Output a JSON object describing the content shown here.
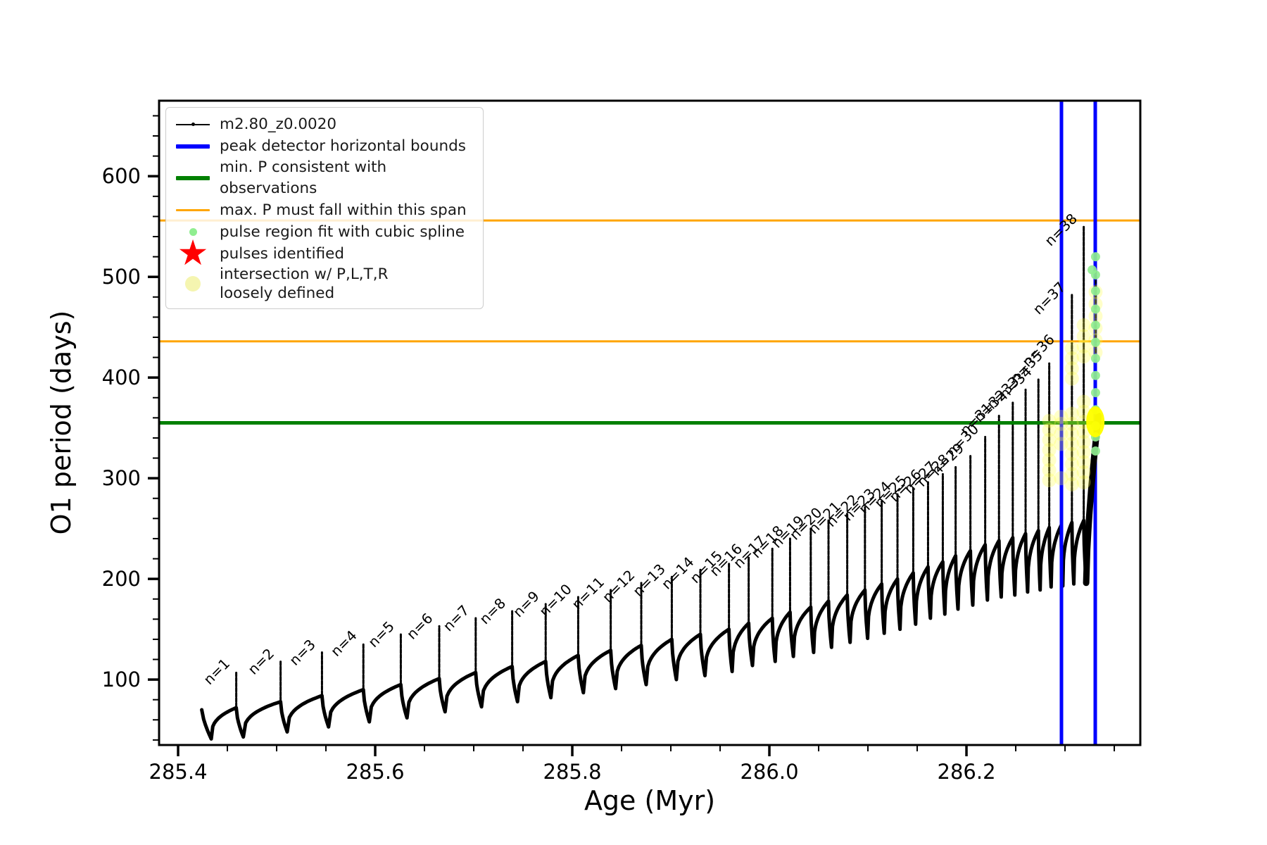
{
  "legend": {
    "items": [
      {
        "label": "m2.80_z0.0020",
        "marker": "line-dot",
        "color": "#000000"
      },
      {
        "label": "peak detector horizontal bounds",
        "marker": "thick-line",
        "color": "#0000ff"
      },
      {
        "label": "min. P consistent with observations",
        "marker": "thick-line",
        "color": "#008000"
      },
      {
        "label": "max. P must fall within this span",
        "marker": "line",
        "color": "#ffa500"
      },
      {
        "label": "pulse region fit with cubic spline",
        "marker": "dot-small",
        "color": "#90ee90"
      },
      {
        "label": "pulses identified",
        "marker": "star",
        "color": "#ff0000"
      },
      {
        "label": "intersection w/ P,L,T,R",
        "label2": "loosely defined",
        "marker": "dot-large",
        "color": "#f5f5b0"
      }
    ]
  },
  "chart_data": {
    "type": "line",
    "title": "",
    "xlabel": "Age (Myr)",
    "ylabel": "O1 period (days)",
    "series_label": "m2.80_z0.0020",
    "xlim": [
      285.3807,
      286.3764
    ],
    "ylim": [
      35,
      675
    ],
    "x_major_ticks": [
      {
        "v": 285.4,
        "label": "285.4"
      },
      {
        "v": 285.6,
        "label": "285.6"
      },
      {
        "v": 285.8,
        "label": "285.8"
      },
      {
        "v": 286.0,
        "label": "286.0"
      },
      {
        "v": 286.2,
        "label": "286.2"
      }
    ],
    "x_minor_step": 0.05,
    "y_major_ticks": [
      {
        "v": 100,
        "label": "100"
      },
      {
        "v": 200,
        "label": "200"
      },
      {
        "v": 300,
        "label": "300"
      },
      {
        "v": 400,
        "label": "400"
      },
      {
        "v": 500,
        "label": "500"
      },
      {
        "v": 600,
        "label": "600"
      }
    ],
    "y_minor_step": 20,
    "colors": {
      "series": "#000000",
      "peak_detector_bounds": "#0000ff",
      "min_p_line": "#008000",
      "max_p_lines": "#ffa500",
      "spline_dots": "#90ee90",
      "pulse_star": "#ff0000",
      "intersection_dots": "#ffff4d",
      "intersection_blob": "#ffff00"
    },
    "hlines": [
      {
        "y": 556,
        "color": "#ffa500",
        "w": 3,
        "meaning": "max. P must fall within this span (upper)"
      },
      {
        "y": 436,
        "color": "#ffa500",
        "w": 3,
        "meaning": "max. P must fall within this span (lower)"
      },
      {
        "y": 355,
        "color": "#008000",
        "w": 5,
        "meaning": "min. P consistent with observations"
      }
    ],
    "vlines": [
      {
        "x": 286.2964,
        "color": "#0000ff",
        "w": 5,
        "meaning": "peak detector bound (left)"
      },
      {
        "x": 286.3307,
        "color": "#0000ff",
        "w": 5,
        "meaning": "peak detector bound (right)"
      }
    ],
    "pulse_label_prefix": "n=",
    "start": {
      "age": 285.424,
      "v": 70,
      "dip_age": 285.4336,
      "dip": 41
    },
    "tail": {
      "dip_age": 286.3215,
      "dip": 196,
      "end_age": 286.334,
      "end_v": 362
    },
    "pulses": [
      {
        "n": 1,
        "age": 285.459,
        "peak": 108,
        "base": 72,
        "dip": 43
      },
      {
        "n": 2,
        "age": 285.504,
        "peak": 118,
        "base": 78,
        "dip": 48
      },
      {
        "n": 3,
        "age": 285.546,
        "peak": 127,
        "base": 84,
        "dip": 53
      },
      {
        "n": 4,
        "age": 285.588,
        "peak": 136,
        "base": 90,
        "dip": 58
      },
      {
        "n": 5,
        "age": 285.626,
        "peak": 145,
        "base": 95,
        "dip": 62
      },
      {
        "n": 6,
        "age": 285.665,
        "peak": 153,
        "base": 101,
        "dip": 68
      },
      {
        "n": 7,
        "age": 285.702,
        "peak": 161,
        "base": 107,
        "dip": 73
      },
      {
        "n": 8,
        "age": 285.739,
        "peak": 168,
        "base": 113,
        "dip": 78
      },
      {
        "n": 9,
        "age": 285.773,
        "peak": 175,
        "base": 118,
        "dip": 82
      },
      {
        "n": 10,
        "age": 285.806,
        "peak": 182,
        "base": 124,
        "dip": 87
      },
      {
        "n": 11,
        "age": 285.839,
        "peak": 189,
        "base": 129,
        "dip": 91
      },
      {
        "n": 12,
        "age": 285.87,
        "peak": 196,
        "base": 134,
        "dip": 95
      },
      {
        "n": 13,
        "age": 285.901,
        "peak": 202,
        "base": 140,
        "dip": 100
      },
      {
        "n": 14,
        "age": 285.93,
        "peak": 209,
        "base": 145,
        "dip": 104
      },
      {
        "n": 15,
        "age": 285.959,
        "peak": 215,
        "base": 150,
        "dip": 108
      },
      {
        "n": 16,
        "age": 285.979,
        "peak": 222,
        "base": 156,
        "dip": 114
      },
      {
        "n": 17,
        "age": 286.003,
        "peak": 230,
        "base": 161,
        "dip": 118
      },
      {
        "n": 18,
        "age": 286.021,
        "peak": 240,
        "base": 167,
        "dip": 123
      },
      {
        "n": 19,
        "age": 286.042,
        "peak": 250,
        "base": 172,
        "dip": 127
      },
      {
        "n": 20,
        "age": 286.06,
        "peak": 258,
        "base": 178,
        "dip": 132
      },
      {
        "n": 21,
        "age": 286.079,
        "peak": 264,
        "base": 184,
        "dip": 137
      },
      {
        "n": 22,
        "age": 286.097,
        "peak": 271,
        "base": 189,
        "dip": 141
      },
      {
        "n": 23,
        "age": 286.114,
        "peak": 277,
        "base": 195,
        "dip": 146
      },
      {
        "n": 24,
        "age": 286.13,
        "peak": 284,
        "base": 200,
        "dip": 150
      },
      {
        "n": 25,
        "age": 286.146,
        "peak": 290,
        "base": 206,
        "dip": 155
      },
      {
        "n": 26,
        "age": 286.161,
        "peak": 296,
        "base": 212,
        "dip": 161
      },
      {
        "n": 27,
        "age": 286.176,
        "peak": 304,
        "base": 217,
        "dip": 165
      },
      {
        "n": 28,
        "age": 286.189,
        "peak": 311,
        "base": 223,
        "dip": 170
      },
      {
        "n": 29,
        "age": 286.204,
        "peak": 322,
        "base": 228,
        "dip": 174
      },
      {
        "n": 30,
        "age": 286.219,
        "peak": 341,
        "base": 234,
        "dip": 179
      },
      {
        "n": 31,
        "age": 286.233,
        "peak": 362,
        "base": 238,
        "dip": 182
      },
      {
        "n": 32,
        "age": 286.247,
        "peak": 375,
        "base": 241,
        "dip": 184
      },
      {
        "n": 33,
        "age": 286.26,
        "peak": 388,
        "base": 245,
        "dip": 187
      },
      {
        "n": 34,
        "age": 286.273,
        "peak": 398,
        "base": 248,
        "dip": 189
      },
      {
        "n": 35,
        "age": 286.284,
        "peak": 414,
        "base": 251,
        "dip": 192
      },
      {
        "n": 36,
        "age": 286.296,
        "peak": 430,
        "base": 253,
        "dip": 193
      },
      {
        "n": 37,
        "age": 286.307,
        "peak": 482,
        "base": 256,
        "dip": 195
      },
      {
        "n": 38,
        "age": 286.319,
        "peak": 550,
        "base": 258,
        "dip": 196
      }
    ],
    "extra_spike": {
      "x": 286.3312,
      "v1": 425,
      "v2": 507
    },
    "spline_dots": [
      [
        286.3275,
        507
      ],
      [
        286.331,
        520
      ],
      [
        286.331,
        502
      ],
      [
        286.331,
        486
      ],
      [
        286.331,
        468
      ],
      [
        286.331,
        452
      ],
      [
        286.331,
        435
      ],
      [
        286.331,
        419
      ],
      [
        286.331,
        402
      ],
      [
        286.331,
        385
      ],
      [
        286.331,
        368
      ],
      [
        286.331,
        352
      ],
      [
        286.331,
        341
      ],
      [
        286.331,
        327
      ]
    ],
    "intersection_dots": [
      [
        286.284,
        298
      ],
      [
        286.284,
        308
      ],
      [
        286.284,
        318
      ],
      [
        286.284,
        328
      ],
      [
        286.284,
        338
      ],
      [
        286.284,
        348
      ],
      [
        286.284,
        357
      ],
      [
        286.296,
        300
      ],
      [
        286.296,
        334
      ],
      [
        286.296,
        344
      ],
      [
        286.296,
        354
      ],
      [
        286.296,
        361
      ],
      [
        286.307,
        294
      ],
      [
        286.307,
        304
      ],
      [
        286.307,
        314
      ],
      [
        286.307,
        324
      ],
      [
        286.307,
        334
      ],
      [
        286.307,
        344
      ],
      [
        286.307,
        354
      ],
      [
        286.307,
        364
      ],
      [
        286.307,
        399
      ],
      [
        286.307,
        409
      ],
      [
        286.307,
        419
      ],
      [
        286.307,
        429
      ],
      [
        286.319,
        296
      ],
      [
        286.319,
        306
      ],
      [
        286.319,
        316
      ],
      [
        286.319,
        326
      ],
      [
        286.319,
        336
      ],
      [
        286.319,
        346
      ],
      [
        286.319,
        356
      ],
      [
        286.319,
        366
      ],
      [
        286.319,
        376
      ],
      [
        286.319,
        421
      ],
      [
        286.319,
        431
      ],
      [
        286.319,
        441
      ],
      [
        286.319,
        452
      ],
      [
        286.331,
        425
      ],
      [
        286.331,
        437
      ],
      [
        286.331,
        449
      ],
      [
        286.331,
        461
      ],
      [
        286.331,
        473
      ],
      [
        286.331,
        485
      ]
    ],
    "intersection_blob": {
      "x": 286.3308,
      "y": 356
    }
  }
}
